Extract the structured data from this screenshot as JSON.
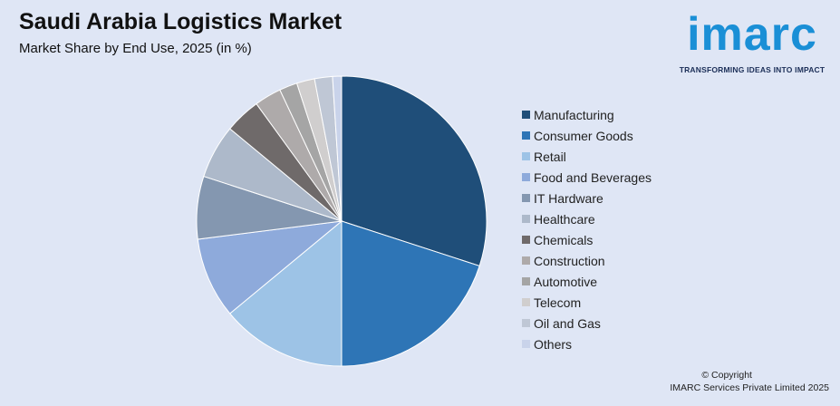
{
  "header": {
    "title": "Saudi Arabia Logistics Market",
    "subtitle": "Market Share by End Use, 2025 (in %)"
  },
  "logo": {
    "wordmark": "imarc",
    "tagline": "TRANSFORMING IDEAS INTO IMPACT",
    "color": "#1a8fd6"
  },
  "footer": {
    "copyright": "© Copyright",
    "company": "IMARC Services Private Limited 2025"
  },
  "chart_data": {
    "type": "pie",
    "title": "Saudi Arabia Logistics Market",
    "subtitle": "Market Share by End Use, 2025 (in %)",
    "legend_position": "right",
    "categories": [
      "Manufacturing",
      "Consumer Goods",
      "Retail",
      "Food and Beverages",
      "IT Hardware",
      "Healthcare",
      "Chemicals",
      "Construction",
      "Automotive",
      "Telecom",
      "Oil and Gas",
      "Others"
    ],
    "values": [
      30,
      20,
      14,
      9,
      7,
      6,
      4,
      3,
      2,
      2,
      2,
      1
    ],
    "colors": [
      "#1f4e79",
      "#2e75b6",
      "#9dc3e6",
      "#8eaadb",
      "#8497b0",
      "#adb9ca",
      "#6f6a6a",
      "#aeaaaa",
      "#a5a5a5",
      "#d0cece",
      "#bfc7d5",
      "#c9d3ea"
    ]
  }
}
